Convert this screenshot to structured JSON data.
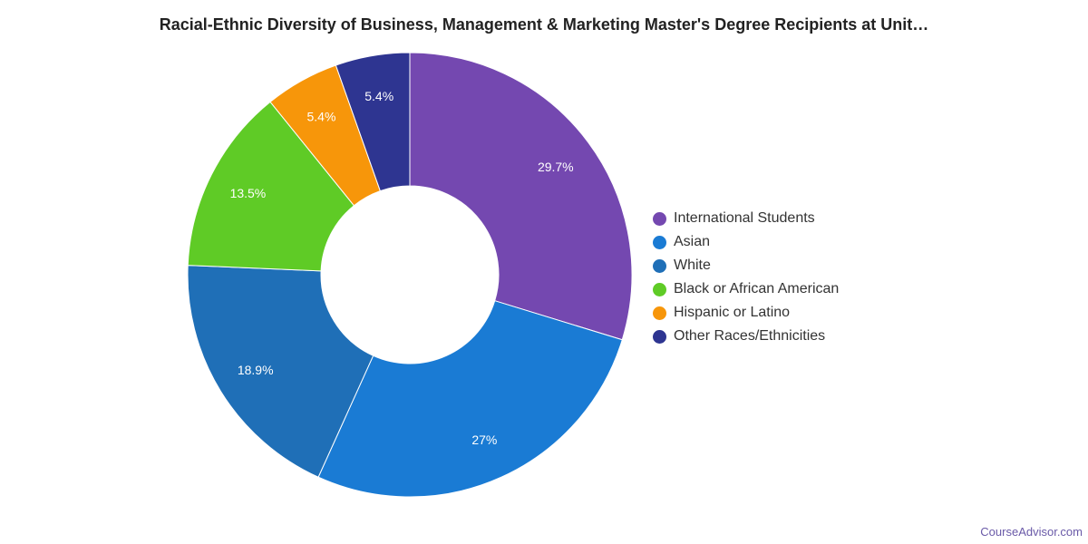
{
  "title": "Racial-Ethnic Diversity of Business, Management & Marketing Master's Degree Recipients at Unit…",
  "brand": "CourseAdvisor.com",
  "chart_data": {
    "type": "pie",
    "donut": true,
    "title": "Racial-Ethnic Diversity of Business, Management & Marketing Master's Degree Recipients at Unit…",
    "legend_position": "right",
    "series": [
      {
        "name": "",
        "slices": [
          {
            "label": "International Students",
            "value": 29.7,
            "display": "29.7%",
            "color": "#7448b0"
          },
          {
            "label": "Asian",
            "value": 27,
            "display": "27%",
            "color": "#1a7bd4"
          },
          {
            "label": "White",
            "value": 18.9,
            "display": "18.9%",
            "color": "#1f6fb7"
          },
          {
            "label": "Black or African American",
            "value": 13.5,
            "display": "13.5%",
            "color": "#5fcb26"
          },
          {
            "label": "Hispanic or Latino",
            "value": 5.4,
            "display": "5.4%",
            "color": "#f7960a"
          },
          {
            "label": "Other Races/Ethnicities",
            "value": 5.4,
            "display": "5.4%",
            "color": "#2e3591"
          }
        ]
      }
    ]
  }
}
